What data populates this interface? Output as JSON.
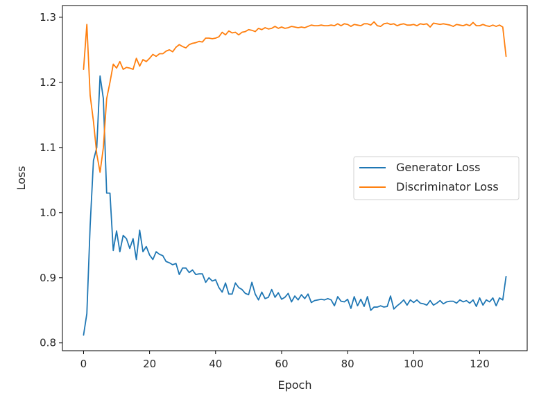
{
  "chart_data": {
    "type": "line",
    "title": "",
    "xlabel": "Epoch",
    "ylabel": "Loss",
    "xlim": [
      -6.4,
      134.4
    ],
    "ylim": [
      0.788,
      1.318
    ],
    "xticks": [
      0,
      20,
      40,
      60,
      80,
      100,
      120
    ],
    "yticks": [
      0.8,
      0.9,
      1.0,
      1.1,
      1.2,
      1.3
    ],
    "xtick_labels": [
      "0",
      "20",
      "40",
      "60",
      "80",
      "100",
      "120"
    ],
    "ytick_labels": [
      "0.8",
      "0.9",
      "1.0",
      "1.1",
      "1.2",
      "1.3"
    ],
    "grid": false,
    "legend_position": "center-right",
    "series": [
      {
        "name": "Generator Loss",
        "color": "#1f77b4",
        "values": [
          0.812,
          0.845,
          0.98,
          1.08,
          1.1,
          1.21,
          1.175,
          1.03,
          1.03,
          0.942,
          0.972,
          0.94,
          0.965,
          0.96,
          0.945,
          0.96,
          0.928,
          0.973,
          0.94,
          0.948,
          0.935,
          0.928,
          0.94,
          0.936,
          0.934,
          0.925,
          0.923,
          0.92,
          0.922,
          0.905,
          0.915,
          0.915,
          0.908,
          0.912,
          0.905,
          0.906,
          0.906,
          0.893,
          0.9,
          0.895,
          0.897,
          0.885,
          0.878,
          0.892,
          0.875,
          0.875,
          0.892,
          0.885,
          0.882,
          0.876,
          0.874,
          0.893,
          0.875,
          0.866,
          0.878,
          0.868,
          0.87,
          0.882,
          0.87,
          0.877,
          0.867,
          0.87,
          0.876,
          0.863,
          0.872,
          0.866,
          0.874,
          0.868,
          0.875,
          0.862,
          0.865,
          0.866,
          0.867,
          0.866,
          0.868,
          0.866,
          0.857,
          0.871,
          0.864,
          0.863,
          0.867,
          0.853,
          0.871,
          0.857,
          0.867,
          0.856,
          0.871,
          0.85,
          0.855,
          0.855,
          0.857,
          0.855,
          0.856,
          0.872,
          0.852,
          0.857,
          0.861,
          0.866,
          0.858,
          0.866,
          0.862,
          0.866,
          0.861,
          0.86,
          0.858,
          0.865,
          0.858,
          0.861,
          0.865,
          0.86,
          0.863,
          0.864,
          0.864,
          0.861,
          0.866,
          0.863,
          0.865,
          0.861,
          0.866,
          0.856,
          0.869,
          0.858,
          0.866,
          0.863,
          0.869,
          0.857,
          0.869,
          0.866,
          0.902
        ]
      },
      {
        "name": "Discriminator Loss",
        "color": "#ff7f0e",
        "values": [
          1.22,
          1.289,
          1.18,
          1.14,
          1.09,
          1.062,
          1.1,
          1.175,
          1.2,
          1.228,
          1.222,
          1.232,
          1.22,
          1.223,
          1.222,
          1.22,
          1.237,
          1.225,
          1.235,
          1.232,
          1.237,
          1.243,
          1.24,
          1.244,
          1.244,
          1.248,
          1.25,
          1.247,
          1.254,
          1.258,
          1.255,
          1.253,
          1.258,
          1.26,
          1.261,
          1.263,
          1.262,
          1.268,
          1.268,
          1.267,
          1.268,
          1.27,
          1.277,
          1.273,
          1.279,
          1.276,
          1.277,
          1.273,
          1.277,
          1.278,
          1.281,
          1.28,
          1.278,
          1.283,
          1.281,
          1.284,
          1.282,
          1.283,
          1.286,
          1.283,
          1.285,
          1.283,
          1.284,
          1.286,
          1.285,
          1.284,
          1.285,
          1.284,
          1.286,
          1.288,
          1.287,
          1.287,
          1.288,
          1.287,
          1.287,
          1.288,
          1.287,
          1.29,
          1.287,
          1.29,
          1.289,
          1.286,
          1.289,
          1.288,
          1.287,
          1.29,
          1.29,
          1.288,
          1.293,
          1.287,
          1.286,
          1.29,
          1.291,
          1.289,
          1.29,
          1.287,
          1.289,
          1.29,
          1.288,
          1.288,
          1.289,
          1.287,
          1.29,
          1.289,
          1.29,
          1.285,
          1.291,
          1.29,
          1.289,
          1.29,
          1.289,
          1.288,
          1.286,
          1.289,
          1.288,
          1.287,
          1.289,
          1.287,
          1.292,
          1.287,
          1.287,
          1.289,
          1.287,
          1.286,
          1.288,
          1.286,
          1.288,
          1.285,
          1.24
        ]
      }
    ]
  }
}
